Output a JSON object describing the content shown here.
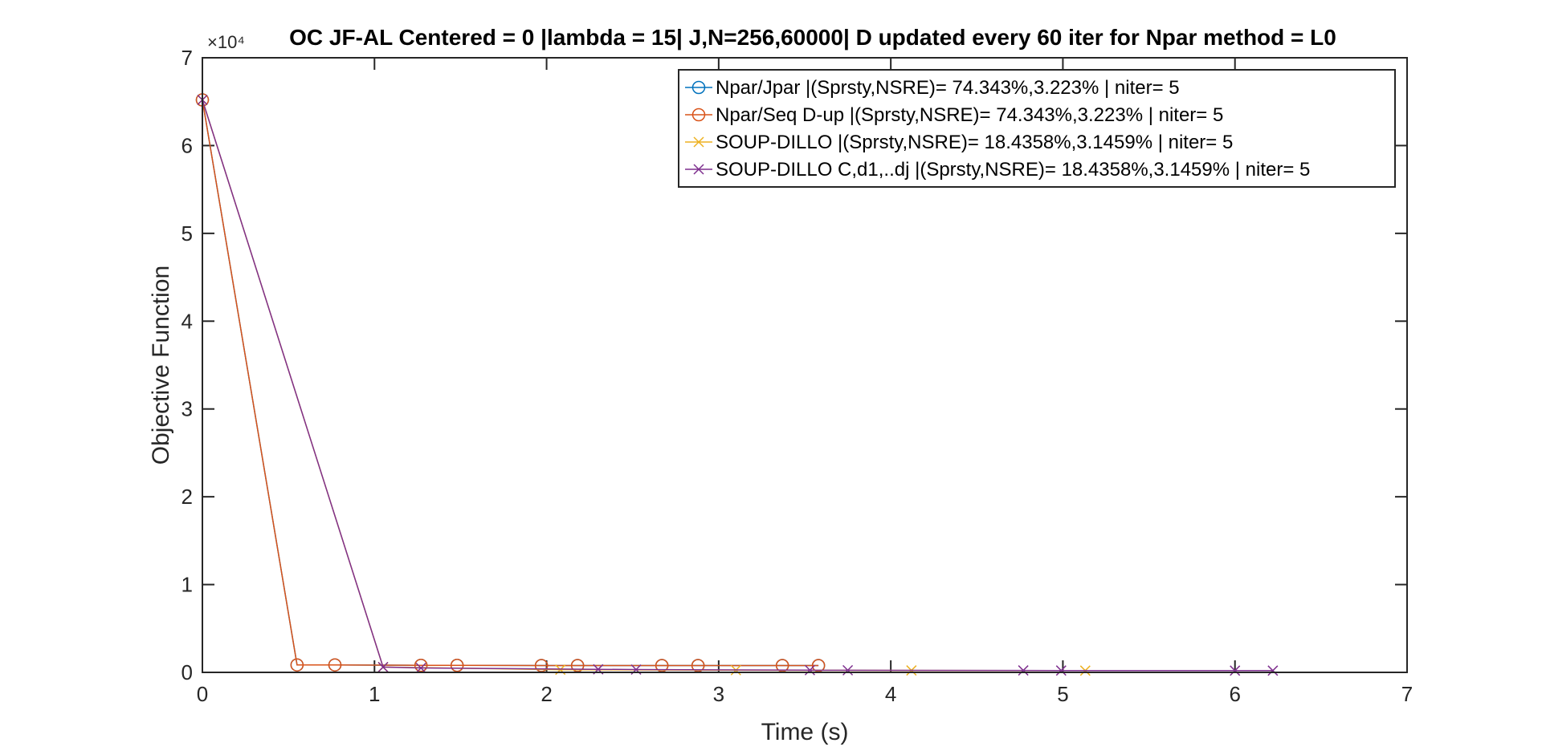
{
  "chart_data": {
    "type": "line",
    "title": "OC JF-AL Centered = 0 |lambda = 15| J,N=256,60000| D updated every 60 iter for Npar method = L0",
    "xlabel": "Time (s)",
    "ylabel": "Objective Function",
    "y_exponent_label": "×10⁴",
    "xlim": [
      0,
      7
    ],
    "ylim": [
      0,
      7
    ],
    "x_ticks": [
      "0",
      "1",
      "2",
      "3",
      "4",
      "5",
      "6",
      "7"
    ],
    "y_ticks": [
      "0",
      "1",
      "2",
      "3",
      "4",
      "5",
      "6",
      "7"
    ],
    "grid": false,
    "legend_position": "top-right",
    "series": [
      {
        "name": "Npar/Jpar |(Sprsty,NSRE)= 74.343%,3.223% | niter= 5",
        "color": "#0072BD",
        "marker": "circle",
        "x": [
          0,
          0.55,
          0.77,
          1.27,
          1.48,
          1.97,
          2.18,
          2.67,
          2.88,
          3.37,
          3.58
        ],
        "y": [
          6.52,
          0.085,
          0.085,
          0.08,
          0.08,
          0.078,
          0.078,
          0.078,
          0.078,
          0.078,
          0.078
        ]
      },
      {
        "name": "Npar/Seq D-up |(Sprsty,NSRE)= 74.343%,3.223% | niter= 5",
        "color": "#D95319",
        "marker": "circle",
        "x": [
          0,
          0.55,
          0.77,
          1.27,
          1.48,
          1.97,
          2.18,
          2.67,
          2.88,
          3.37,
          3.58
        ],
        "y": [
          6.52,
          0.085,
          0.085,
          0.08,
          0.08,
          0.078,
          0.078,
          0.078,
          0.078,
          0.078,
          0.078
        ]
      },
      {
        "name": "SOUP-DILLO |(Sprsty,NSRE)= 18.4358%,3.1459% | niter= 5",
        "color": "#EDB120",
        "marker": "x",
        "x": [
          0,
          1.05,
          2.08,
          3.1,
          4.12,
          5.13
        ],
        "y": [
          6.52,
          0.06,
          0.03,
          0.025,
          0.022,
          0.02
        ]
      },
      {
        "name": "SOUP-DILLO C,d1,..dj |(Sprsty,NSRE)= 18.4358%,3.1459% | niter= 5",
        "color": "#7E2F8E",
        "marker": "x",
        "x": [
          0,
          1.05,
          1.27,
          2.3,
          2.52,
          3.53,
          3.75,
          4.77,
          4.99,
          6.0,
          6.22
        ],
        "y": [
          6.52,
          0.06,
          0.05,
          0.035,
          0.032,
          0.025,
          0.024,
          0.022,
          0.021,
          0.02,
          0.02
        ]
      }
    ]
  }
}
